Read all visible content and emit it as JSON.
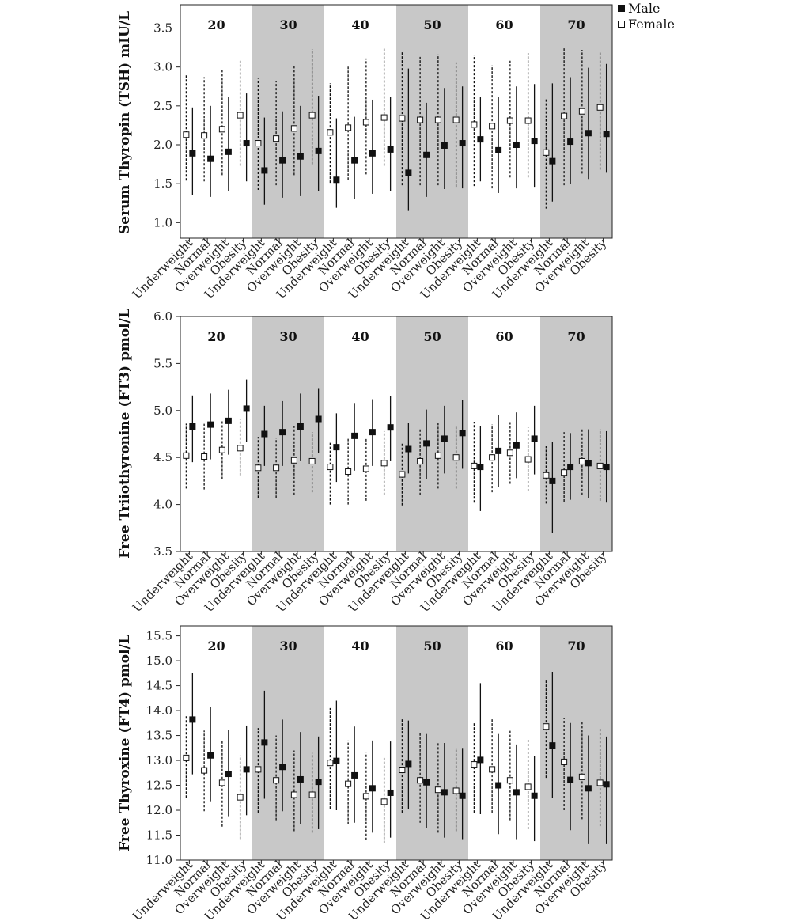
{
  "legend": {
    "male": "Male",
    "female": "Female"
  },
  "chart_data": [
    {
      "type": "scatter",
      "ylabel": "Serum Thyropin (TSH) mIU/L",
      "ylim": [
        0.8,
        3.8
      ],
      "yticks": [
        "1.0",
        "1.5",
        "2.0",
        "2.5",
        "3.0",
        "3.5"
      ],
      "groups": [
        "20",
        "30",
        "40",
        "50",
        "60",
        "70"
      ],
      "categories": [
        "Underweight",
        "Normal",
        "Overweight",
        "Obesity"
      ],
      "series": [
        {
          "name": "Female",
          "values": [
            [
              2.13,
              2.12,
              2.2,
              2.38
            ],
            [
              2.02,
              2.08,
              2.21,
              2.38
            ],
            [
              2.16,
              2.22,
              2.29,
              2.35
            ],
            [
              2.34,
              2.32,
              2.32,
              2.32
            ],
            [
              2.26,
              2.24,
              2.31,
              2.31
            ],
            [
              1.9,
              2.37,
              2.43,
              2.48
            ]
          ],
          "lower": [
            [
              1.54,
              1.53,
              1.61,
              1.73
            ],
            [
              1.42,
              1.48,
              1.61,
              1.75
            ],
            [
              1.51,
              1.55,
              1.62,
              1.73
            ],
            [
              1.48,
              1.48,
              1.48,
              1.46
            ],
            [
              1.47,
              1.44,
              1.58,
              1.58
            ],
            [
              1.18,
              1.48,
              1.63,
              1.68
            ]
          ],
          "upper": [
            [
              2.9,
              2.87,
              2.97,
              3.08
            ],
            [
              2.85,
              2.82,
              3.03,
              3.23
            ],
            [
              2.79,
              3.02,
              3.11,
              3.26
            ],
            [
              3.2,
              3.13,
              3.16,
              3.06
            ],
            [
              3.15,
              3.02,
              3.08,
              3.18
            ],
            [
              2.6,
              3.24,
              3.22,
              3.19
            ]
          ]
        },
        {
          "name": "Male",
          "values": [
            [
              1.89,
              1.82,
              1.91,
              2.02
            ],
            [
              1.67,
              1.8,
              1.85,
              1.92
            ],
            [
              1.55,
              1.8,
              1.89,
              1.94
            ],
            [
              1.64,
              1.87,
              1.99,
              2.02
            ],
            [
              2.07,
              1.93,
              2.0,
              2.05
            ],
            [
              1.79,
              2.04,
              2.15,
              2.14
            ]
          ],
          "lower": [
            [
              1.35,
              1.33,
              1.41,
              1.53
            ],
            [
              1.23,
              1.32,
              1.34,
              1.41
            ],
            [
              1.19,
              1.3,
              1.37,
              1.41
            ],
            [
              1.15,
              1.33,
              1.43,
              1.44
            ],
            [
              1.53,
              1.38,
              1.44,
              1.46
            ],
            [
              1.27,
              1.5,
              1.56,
              1.64
            ]
          ],
          "upper": [
            [
              2.48,
              2.5,
              2.62,
              2.66
            ],
            [
              2.35,
              2.43,
              2.5,
              2.63
            ],
            [
              2.34,
              2.36,
              2.58,
              2.62
            ],
            [
              2.98,
              2.54,
              2.73,
              2.75
            ],
            [
              2.61,
              2.61,
              2.75,
              2.78
            ],
            [
              2.79,
              2.87,
              2.99,
              3.04
            ]
          ]
        }
      ]
    },
    {
      "type": "scatter",
      "ylabel": "Free Triiothyronine (FT3) pmol/L",
      "ylim": [
        3.5,
        6.0
      ],
      "yticks": [
        "3.5",
        "4.0",
        "4.5",
        "5.0",
        "5.5",
        "6.0"
      ],
      "groups": [
        "20",
        "30",
        "40",
        "50",
        "60",
        "70"
      ],
      "categories": [
        "Underweight",
        "Normal",
        "Overweight",
        "Obesity"
      ],
      "series": [
        {
          "name": "Female",
          "values": [
            [
              4.52,
              4.51,
              4.58,
              4.6
            ],
            [
              4.39,
              4.39,
              4.47,
              4.46
            ],
            [
              4.4,
              4.35,
              4.38,
              4.44
            ],
            [
              4.32,
              4.46,
              4.52,
              4.5
            ],
            [
              4.41,
              4.5,
              4.55,
              4.48
            ],
            [
              4.31,
              4.34,
              4.46,
              4.41
            ]
          ],
          "lower": [
            [
              4.17,
              4.16,
              4.27,
              4.31
            ],
            [
              4.07,
              4.07,
              4.1,
              4.13
            ],
            [
              4.0,
              4.0,
              4.04,
              4.1
            ],
            [
              3.99,
              4.1,
              4.17,
              4.17
            ],
            [
              4.02,
              4.13,
              4.22,
              4.14
            ],
            [
              4.01,
              4.03,
              4.1,
              4.04
            ]
          ],
          "upper": [
            [
              4.86,
              4.86,
              4.9,
              4.91
            ],
            [
              4.72,
              4.71,
              4.83,
              4.77
            ],
            [
              4.66,
              4.7,
              4.7,
              4.78
            ],
            [
              4.66,
              4.8,
              4.87,
              4.83
            ],
            [
              4.88,
              4.85,
              4.89,
              4.82
            ],
            [
              4.62,
              4.77,
              4.81,
              4.8
            ]
          ]
        },
        {
          "name": "Male",
          "values": [
            [
              4.83,
              4.85,
              4.89,
              5.02
            ],
            [
              4.75,
              4.77,
              4.83,
              4.91
            ],
            [
              4.61,
              4.73,
              4.77,
              4.82
            ],
            [
              4.59,
              4.65,
              4.7,
              4.76
            ],
            [
              4.4,
              4.57,
              4.63,
              4.7
            ],
            [
              4.25,
              4.4,
              4.44,
              4.4
            ]
          ],
          "lower": [
            [
              4.45,
              4.48,
              4.53,
              4.67
            ],
            [
              4.41,
              4.41,
              4.46,
              4.55
            ],
            [
              4.24,
              4.36,
              4.41,
              4.46
            ],
            [
              4.33,
              4.27,
              4.33,
              4.38
            ],
            [
              3.93,
              4.19,
              4.28,
              4.32
            ],
            [
              3.7,
              4.05,
              4.07,
              4.02
            ]
          ],
          "upper": [
            [
              5.16,
              5.18,
              5.22,
              5.33
            ],
            [
              5.05,
              5.1,
              5.18,
              5.23
            ],
            [
              4.97,
              5.08,
              5.12,
              5.15
            ],
            [
              4.87,
              5.01,
              5.05,
              5.11
            ],
            [
              4.83,
              4.95,
              4.98,
              5.05
            ],
            [
              4.67,
              4.76,
              4.8,
              4.78
            ]
          ]
        }
      ]
    },
    {
      "type": "scatter",
      "ylabel": "Free Thyroxine (FT4) pmol/L",
      "ylim": [
        11.0,
        15.7
      ],
      "yticks": [
        "11.0",
        "11.5",
        "12.0",
        "12.5",
        "13.0",
        "13.5",
        "14.0",
        "14.5",
        "15.0",
        "15.5"
      ],
      "groups": [
        "20",
        "30",
        "40",
        "50",
        "60",
        "70"
      ],
      "categories": [
        "Underweight",
        "Normal",
        "Overweight",
        "Obesity"
      ],
      "series": [
        {
          "name": "Female",
          "values": [
            [
              13.05,
              12.8,
              12.55,
              12.26
            ],
            [
              12.82,
              12.6,
              12.31,
              12.31
            ],
            [
              12.95,
              12.53,
              12.28,
              12.17
            ],
            [
              12.81,
              12.6,
              12.41,
              12.39
            ],
            [
              12.92,
              12.82,
              12.6,
              12.47
            ],
            [
              13.68,
              12.97,
              12.67,
              12.55
            ]
          ],
          "lower": [
            [
              12.25,
              11.98,
              11.67,
              11.42
            ],
            [
              11.95,
              11.8,
              11.58,
              11.55
            ],
            [
              12.03,
              11.72,
              11.4,
              11.34
            ],
            [
              11.95,
              11.75,
              11.55,
              11.58
            ],
            [
              11.95,
              11.95,
              11.8,
              11.62
            ],
            [
              12.65,
              12.0,
              11.82,
              11.68
            ]
          ],
          "upper": [
            [
              13.9,
              13.6,
              13.4,
              13.1
            ],
            [
              13.65,
              13.5,
              13.2,
              13.15
            ],
            [
              14.05,
              13.4,
              13.15,
              13.05
            ],
            [
              13.85,
              13.55,
              13.35,
              13.25
            ],
            [
              13.75,
              13.85,
              13.6,
              13.42
            ],
            [
              14.62,
              13.85,
              13.8,
              13.65
            ]
          ]
        },
        {
          "name": "Male",
          "values": [
            [
              13.82,
              13.1,
              12.73,
              12.82
            ],
            [
              13.36,
              12.87,
              12.62,
              12.57
            ],
            [
              12.99,
              12.7,
              12.44,
              12.35
            ],
            [
              12.93,
              12.56,
              12.36,
              12.29
            ],
            [
              13.01,
              12.5,
              12.36,
              12.29
            ],
            [
              13.3,
              12.61,
              12.44,
              12.52
            ]
          ],
          "lower": [
            [
              12.72,
              12.18,
              11.88,
              11.9
            ],
            [
              12.23,
              11.98,
              11.73,
              11.62
            ],
            [
              12.0,
              11.75,
              11.55,
              11.45
            ],
            [
              12.03,
              11.65,
              11.45,
              11.42
            ],
            [
              11.92,
              11.52,
              11.42,
              11.38
            ],
            [
              12.25,
              11.6,
              11.32,
              11.32
            ]
          ],
          "upper": [
            [
              14.75,
              14.08,
              13.62,
              13.7
            ],
            [
              14.4,
              13.82,
              13.57,
              13.48
            ],
            [
              14.2,
              13.68,
              13.4,
              13.38
            ],
            [
              13.8,
              13.53,
              13.35,
              13.25
            ],
            [
              14.55,
              13.53,
              13.32,
              13.08
            ],
            [
              14.78,
              13.75,
              13.5,
              13.48
            ]
          ]
        }
      ]
    }
  ]
}
